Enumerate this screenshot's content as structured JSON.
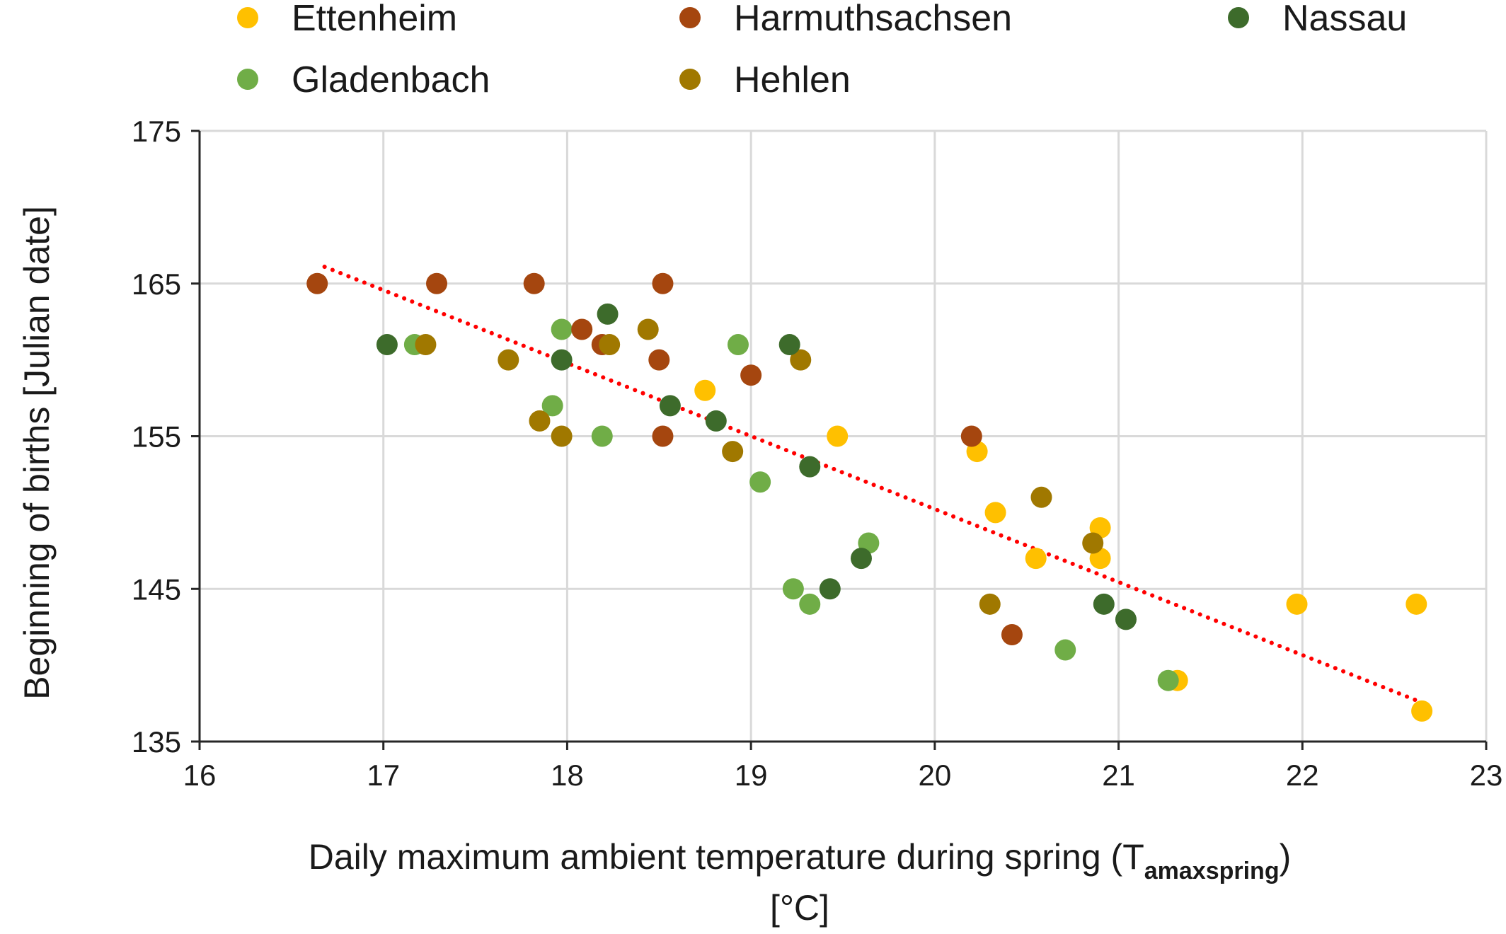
{
  "chart_data": {
    "type": "scatter",
    "title": "",
    "xlabel": "Daily maximum ambient temperature during spring (T",
    "xlabel_subscript": "amaxspring",
    "xlabel_suffix": ")",
    "xlabel_unit": "[°C]",
    "ylabel": "Beginning of births [Julian date]",
    "xlim": [
      16,
      23
    ],
    "ylim": [
      135,
      175
    ],
    "xticks": [
      "16",
      "17",
      "18",
      "19",
      "20",
      "21",
      "22",
      "23"
    ],
    "yticks": [
      "135",
      "145",
      "155",
      "165",
      "175"
    ],
    "grid": true,
    "legend_position": "top",
    "series": [
      {
        "name": "Ettenheim",
        "color": "#FFC000",
        "points": [
          [
            18.75,
            158
          ],
          [
            19.47,
            155
          ],
          [
            20.23,
            154
          ],
          [
            20.33,
            150
          ],
          [
            20.55,
            147
          ],
          [
            20.9,
            149
          ],
          [
            20.9,
            147
          ],
          [
            21.32,
            139
          ],
          [
            21.97,
            144
          ],
          [
            22.62,
            144
          ],
          [
            22.65,
            137
          ]
        ]
      },
      {
        "name": "Gladenbach",
        "color": "#70AD47",
        "points": [
          [
            17.17,
            161
          ],
          [
            17.97,
            162
          ],
          [
            17.92,
            157
          ],
          [
            18.19,
            155
          ],
          [
            18.93,
            161
          ],
          [
            19.05,
            152
          ],
          [
            19.23,
            145
          ],
          [
            19.32,
            144
          ],
          [
            19.64,
            148
          ],
          [
            20.71,
            141
          ],
          [
            21.27,
            139
          ]
        ]
      },
      {
        "name": "Harmuthsachsen",
        "color": "#A5460F",
        "points": [
          [
            16.64,
            165
          ],
          [
            17.29,
            165
          ],
          [
            17.82,
            165
          ],
          [
            18.52,
            165
          ],
          [
            18.08,
            162
          ],
          [
            18.19,
            161
          ],
          [
            18.5,
            160
          ],
          [
            19.0,
            159
          ],
          [
            18.52,
            155
          ],
          [
            20.2,
            155
          ],
          [
            20.42,
            142
          ]
        ]
      },
      {
        "name": "Hehlen",
        "color": "#A07800",
        "points": [
          [
            17.23,
            161
          ],
          [
            17.68,
            160
          ],
          [
            18.23,
            161
          ],
          [
            18.44,
            162
          ],
          [
            17.85,
            156
          ],
          [
            17.97,
            155
          ],
          [
            18.9,
            154
          ],
          [
            19.27,
            160
          ],
          [
            20.58,
            151
          ],
          [
            20.3,
            144
          ],
          [
            20.86,
            148
          ]
        ]
      },
      {
        "name": "Nassau",
        "color": "#3D6B2B",
        "points": [
          [
            17.02,
            161
          ],
          [
            17.97,
            160
          ],
          [
            18.22,
            163
          ],
          [
            18.56,
            157
          ],
          [
            18.81,
            156
          ],
          [
            19.21,
            161
          ],
          [
            19.32,
            153
          ],
          [
            19.43,
            145
          ],
          [
            19.6,
            147
          ],
          [
            20.92,
            144
          ],
          [
            21.04,
            143
          ]
        ]
      }
    ],
    "trendline": {
      "style": "dotted",
      "color": "#FF0000",
      "x": [
        16.68,
        22.62
      ],
      "y": [
        166.1,
        137.7
      ]
    }
  }
}
